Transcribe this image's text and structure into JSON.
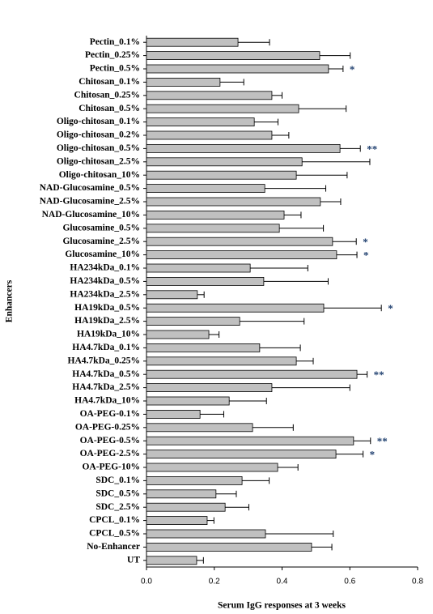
{
  "chart_data": {
    "type": "bar",
    "orientation": "horizontal",
    "x_label": "Serum IgG responses at 3 weeks",
    "y_label": "Enhancers",
    "categories": [
      "Pectin_0.1%",
      "Pectin_0.25%",
      "Pectin_0.5%",
      "Chitosan_0.1%",
      "Chitosan_0.25%",
      "Chitosan_0.5%",
      "Oligo-chitosan_0.1%",
      "Oligo-chitosan_0.2%",
      "Oligo-chitosan_0.5%",
      "Oligo-chitosan_2.5%",
      "Oligo-chitosan_10%",
      "NAD-Glucosamine_0.5%",
      "NAD-Glucosamine_2.5%",
      "NAD-Glucosamine_10%",
      "Glucosamine_0.5%",
      "Glucosamine_2.5%",
      "Glucosamine_10%",
      "HA234kDa_0.1%",
      "HA234kDa_0.5%",
      "HA234kDa_2.5%",
      "HA19kDa_0.5%",
      "HA19kDa_2.5%",
      "HA19kDa_10%",
      "HA4.7kDa_0.1%",
      "HA4.7kDa_0.25%",
      "HA4.7kDa_0.5%",
      "HA4.7kDa_2.5%",
      "HA4.7kDa_10%",
      "OA-PEG-0.1%",
      "OA-PEG-0.25%",
      "OA-PEG-0.5%",
      "OA-PEG-2.5%",
      "OA-PEG-10%",
      "SDC_0.1%",
      "SDC_0.5%",
      "SDC_2.5%",
      "CPCL_0.1%",
      "CPCL_0.5%",
      "No-Enhancer",
      "UT"
    ],
    "values": [
      0.27,
      0.511,
      0.537,
      0.217,
      0.37,
      0.449,
      0.318,
      0.37,
      0.571,
      0.459,
      0.442,
      0.349,
      0.513,
      0.406,
      0.392,
      0.549,
      0.561,
      0.306,
      0.346,
      0.15,
      0.523,
      0.275,
      0.184,
      0.334,
      0.442,
      0.621,
      0.37,
      0.244,
      0.158,
      0.313,
      0.611,
      0.559,
      0.387,
      0.282,
      0.205,
      0.232,
      0.179,
      0.351,
      0.487,
      0.148
    ],
    "errors": [
      0.093,
      0.09,
      0.043,
      0.07,
      0.03,
      0.14,
      0.07,
      0.05,
      0.06,
      0.2,
      0.15,
      0.18,
      0.06,
      0.05,
      0.13,
      0.07,
      0.06,
      0.17,
      0.19,
      0.02,
      0.17,
      0.19,
      0.03,
      0.12,
      0.05,
      0.03,
      0.23,
      0.11,
      0.07,
      0.12,
      0.05,
      0.08,
      0.06,
      0.08,
      0.06,
      0.07,
      0.02,
      0.2,
      0.06,
      0.02
    ],
    "significance": [
      null,
      null,
      "*",
      null,
      null,
      null,
      null,
      null,
      "**",
      null,
      null,
      null,
      null,
      null,
      null,
      "*",
      "*",
      null,
      null,
      null,
      "*",
      null,
      null,
      null,
      null,
      "**",
      null,
      null,
      null,
      null,
      "**",
      "*",
      null,
      null,
      null,
      null,
      null,
      null,
      null,
      null
    ],
    "color": "#c0c0c0",
    "xlim": [
      0,
      0.8
    ],
    "xticks": [
      {
        "value": 0,
        "label": "0.0"
      },
      0.2,
      0.4,
      0.6,
      0.8
    ]
  }
}
